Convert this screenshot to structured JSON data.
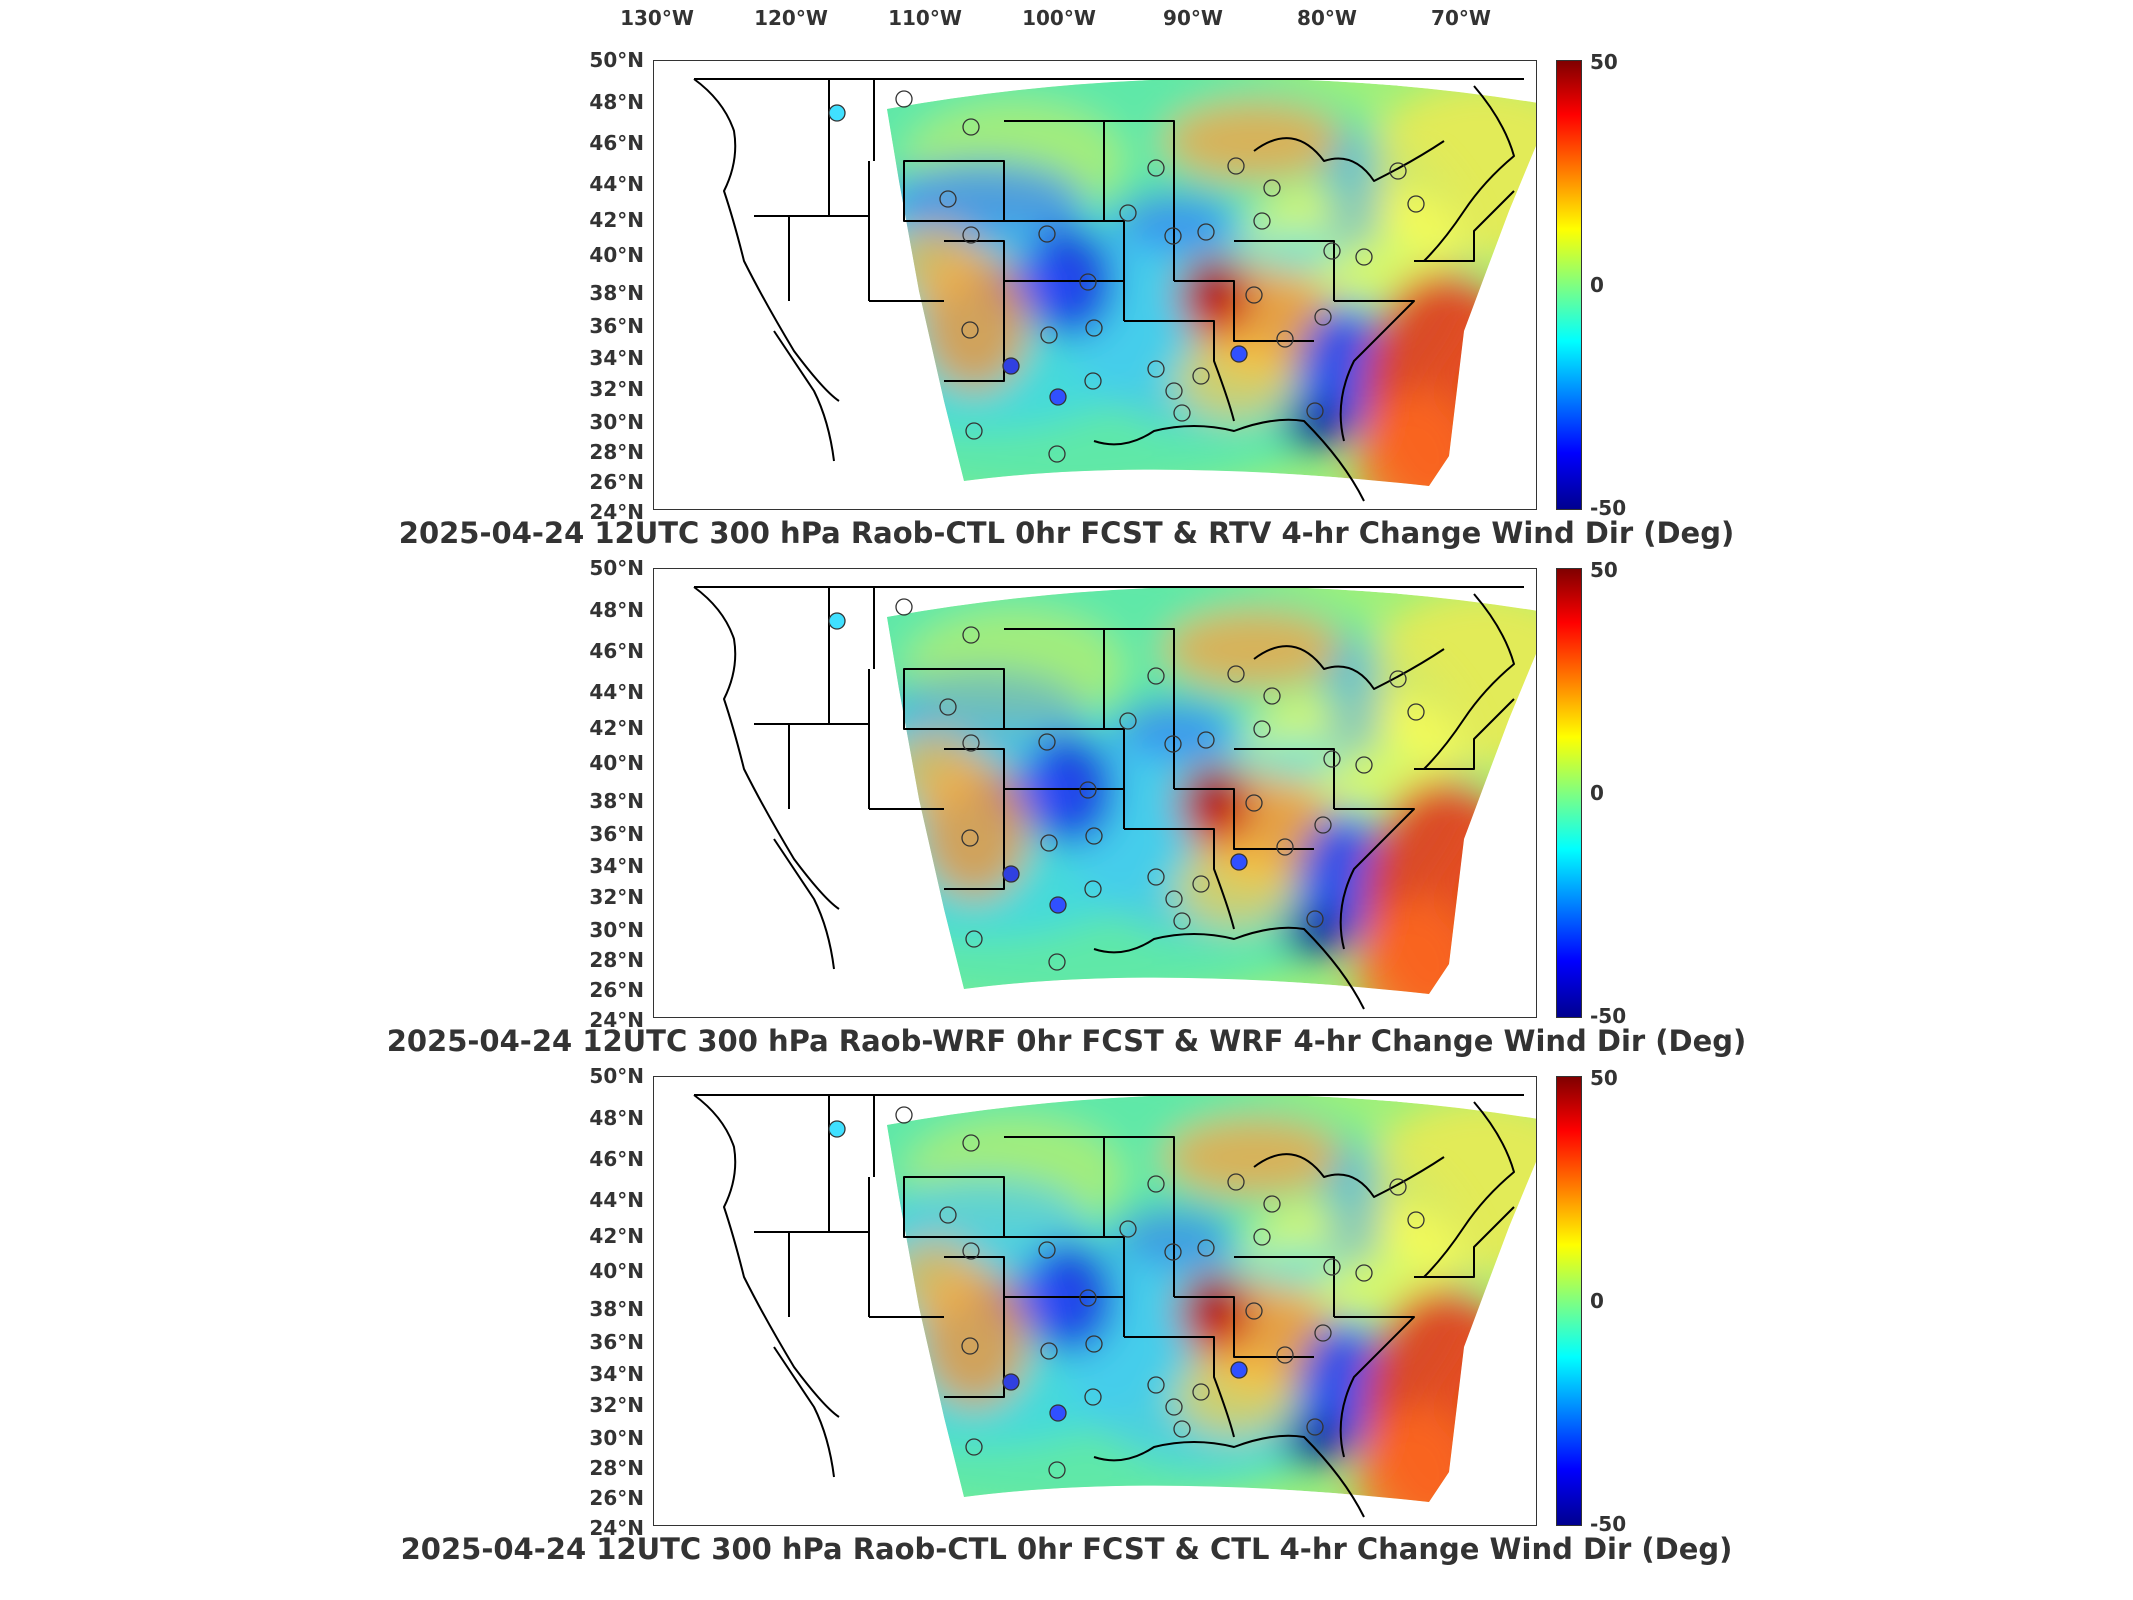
{
  "longitude_ticks": [
    "130°W",
    "120°W",
    "110°W",
    "100°W",
    "90°W",
    "80°W",
    "70°W"
  ],
  "latitude_ticks": [
    "50°N",
    "48°N",
    "46°N",
    "44°N",
    "42°N",
    "40°N",
    "38°N",
    "36°N",
    "34°N",
    "32°N",
    "30°N",
    "28°N",
    "26°N",
    "24°N"
  ],
  "colorbar": {
    "max_label": "50",
    "mid_label": "0",
    "min_label": "-50",
    "range": [
      -50,
      50
    ]
  },
  "panels": [
    {
      "title": "2025-04-24 12UTC 300 hPa Raob-CTL 0hr FCST & RTV 4-hr Change Wind Dir (Deg)"
    },
    {
      "title": "2025-04-24 12UTC 300 hPa Raob-WRF 0hr FCST & WRF 4-hr Change Wind Dir (Deg)"
    },
    {
      "title": "2025-04-24 12UTC 300 hPa Raob-CTL 0hr FCST & CTL 4-hr Change Wind Dir (Deg)"
    }
  ],
  "colors": {
    "frame": "#333333",
    "background": "#ffffff"
  }
}
